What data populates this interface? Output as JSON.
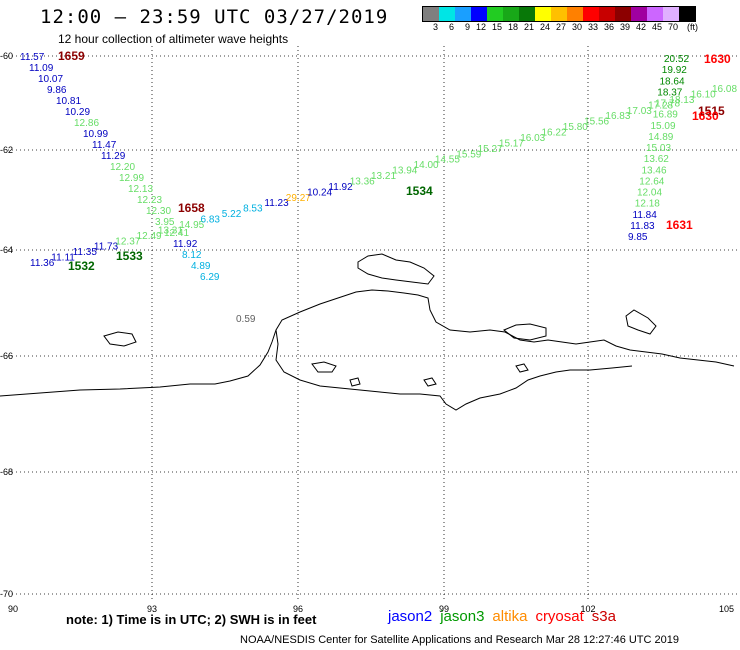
{
  "header": {
    "title": "12:00 — 23:59 UTC 03/27/2019",
    "subtitle": "12 hour collection of altimeter wave heights"
  },
  "legend": {
    "colors": [
      "#7f7f7f",
      "#00e5e5",
      "#1a9fff",
      "#0000ff",
      "#22cc22",
      "#18a818",
      "#087808",
      "#ffff00",
      "#ffc000",
      "#ff8000",
      "#ff0000",
      "#c80000",
      "#8c0000",
      "#a000a0",
      "#cc66ff",
      "#e0b0ff",
      "#000000"
    ],
    "labels": [
      "3",
      "6",
      "9",
      "12",
      "15",
      "18",
      "21",
      "24",
      "27",
      "30",
      "33",
      "36",
      "39",
      "42",
      "45",
      "70",
      "(ft)"
    ]
  },
  "axes": {
    "lon_labels": [
      "90",
      "93",
      "96",
      "99",
      "102",
      "105"
    ],
    "lat_labels": [
      "-60",
      "-62",
      "-64",
      "-66",
      "-68",
      "-70"
    ]
  },
  "tracks": [
    {
      "name": "pass1659",
      "points": [
        {
          "v": "11.57",
          "c": "#0000c0"
        },
        {
          "v": "11.09",
          "c": "#0000c0"
        },
        {
          "v": "10.07",
          "c": "#0000c0"
        },
        {
          "v": "9.86",
          "c": "#0000c0"
        },
        {
          "v": "10.81",
          "c": "#0000c0"
        },
        {
          "v": "10.29",
          "c": "#0000c0"
        },
        {
          "v": "12.86",
          "c": "#66dd66"
        },
        {
          "v": "10.99",
          "c": "#0000c0"
        },
        {
          "v": "11.47",
          "c": "#0000c0"
        },
        {
          "v": "11.29",
          "c": "#0000c0"
        },
        {
          "v": "12.20",
          "c": "#66dd66"
        },
        {
          "v": "12.99",
          "c": "#66dd66"
        },
        {
          "v": "12.13",
          "c": "#66dd66"
        },
        {
          "v": "12.23",
          "c": "#66dd66"
        },
        {
          "v": "12.30",
          "c": "#66dd66"
        },
        {
          "v": "3.95",
          "c": "#66dd66"
        },
        {
          "v": "12.41",
          "c": "#66dd66"
        },
        {
          "v": "11.92",
          "c": "#0000c0"
        },
        {
          "v": "8.12",
          "c": "#00b0e0"
        },
        {
          "v": "4.89",
          "c": "#00b0e0"
        },
        {
          "v": "6.29",
          "c": "#00b0e0"
        }
      ]
    },
    {
      "name": "pass1534",
      "points": [
        {
          "v": "11.36",
          "c": "#0000c0"
        },
        {
          "v": "11.11",
          "c": "#0000c0"
        },
        {
          "v": "11.35",
          "c": "#0000c0"
        },
        {
          "v": "11.73",
          "c": "#0000c0"
        },
        {
          "v": "12.37",
          "c": "#66dd66"
        },
        {
          "v": "12.49",
          "c": "#66dd66"
        },
        {
          "v": "13.31",
          "c": "#66dd66"
        },
        {
          "v": "14.95",
          "c": "#66dd66"
        },
        {
          "v": "6.83",
          "c": "#00b0e0"
        },
        {
          "v": "5.22",
          "c": "#00b0e0"
        },
        {
          "v": "8.53",
          "c": "#00b0e0"
        },
        {
          "v": "11.23",
          "c": "#0000c0"
        },
        {
          "v": "29.27",
          "c": "#ffb000"
        },
        {
          "v": "10.24",
          "c": "#0000c0"
        },
        {
          "v": "11.92",
          "c": "#0000c0"
        },
        {
          "v": "13.36",
          "c": "#66dd66"
        },
        {
          "v": "13.21",
          "c": "#66dd66"
        },
        {
          "v": "13.94",
          "c": "#66dd66"
        },
        {
          "v": "14.00",
          "c": "#66dd66"
        },
        {
          "v": "14.55",
          "c": "#66dd66"
        },
        {
          "v": "15.59",
          "c": "#66dd66"
        },
        {
          "v": "15.27",
          "c": "#66dd66"
        },
        {
          "v": "15.17",
          "c": "#66dd66"
        },
        {
          "v": "16.03",
          "c": "#66dd66"
        },
        {
          "v": "16.22",
          "c": "#66dd66"
        },
        {
          "v": "15.80",
          "c": "#66dd66"
        },
        {
          "v": "15.56",
          "c": "#66dd66"
        },
        {
          "v": "16.83",
          "c": "#66dd66"
        },
        {
          "v": "17.03",
          "c": "#66dd66"
        },
        {
          "v": "17.28",
          "c": "#66dd66"
        },
        {
          "v": "18.13",
          "c": "#66dd66"
        },
        {
          "v": "16.10",
          "c": "#66dd66"
        },
        {
          "v": "16.08",
          "c": "#66dd66"
        }
      ]
    },
    {
      "name": "pass1630",
      "points": [
        {
          "v": "20.52",
          "c": "#008800"
        },
        {
          "v": "19.92",
          "c": "#008800"
        },
        {
          "v": "18.64",
          "c": "#008800"
        },
        {
          "v": "18.37",
          "c": "#008800"
        },
        {
          "v": "17.78",
          "c": "#66dd66"
        },
        {
          "v": "16.89",
          "c": "#66dd66"
        },
        {
          "v": "15.09",
          "c": "#66dd66"
        },
        {
          "v": "14.89",
          "c": "#66dd66"
        },
        {
          "v": "15.03",
          "c": "#66dd66"
        },
        {
          "v": "13.62",
          "c": "#66dd66"
        },
        {
          "v": "13.46",
          "c": "#66dd66"
        },
        {
          "v": "12.64",
          "c": "#66dd66"
        },
        {
          "v": "12.04",
          "c": "#66dd66"
        },
        {
          "v": "12.18",
          "c": "#66dd66"
        },
        {
          "v": "11.84",
          "c": "#0000c0"
        },
        {
          "v": "11.83",
          "c": "#0000c0"
        },
        {
          "v": "9.85",
          "c": "#0000c0"
        }
      ]
    }
  ],
  "extra_values": [
    {
      "v": "0.59",
      "c": "#606060"
    }
  ],
  "stamps": [
    {
      "v": "1659",
      "c": "#8c0000"
    },
    {
      "v": "1658",
      "c": "#8c0000"
    },
    {
      "v": "1532",
      "c": "#006600"
    },
    {
      "v": "1533",
      "c": "#006600"
    },
    {
      "v": "1534",
      "c": "#006600"
    },
    {
      "v": "1630",
      "c": "#ff0000"
    },
    {
      "v": "1515",
      "c": "#8c0000"
    },
    {
      "v": "1630",
      "c": "#ff0000"
    },
    {
      "v": "1631",
      "c": "#ff0000"
    }
  ],
  "footer": {
    "note": "note: 1) Time is in UTC; 2) SWH is in feet",
    "credit": "NOAA/NESDIS Center for Satellite Applications and Research   Mar 28 12:27:46 UTC 2019"
  },
  "satellites": [
    {
      "name": "jason2",
      "color": "#0000ff"
    },
    {
      "name": "jason3",
      "color": "#009900"
    },
    {
      "name": "altika",
      "color": "#ff8c00"
    },
    {
      "name": "cryosat",
      "color": "#ff0000"
    },
    {
      "name": "s3a",
      "color": "#cc0000"
    }
  ]
}
